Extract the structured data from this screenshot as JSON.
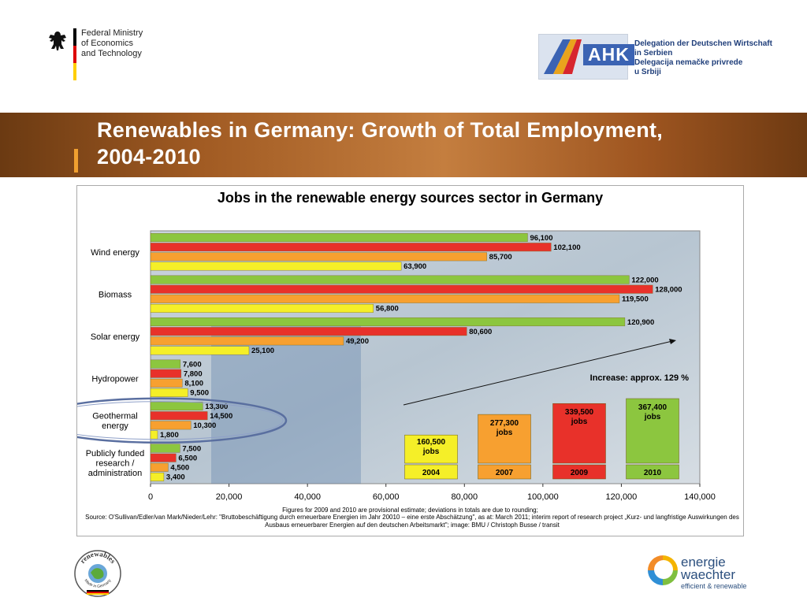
{
  "header": {
    "ministry_lines": [
      "Federal Ministry",
      "of Economics",
      "and Technology"
    ],
    "ahk_word": "AHK",
    "ahk_lines": [
      "Delegation der Deutschen Wirtschaft",
      "in Serbien",
      "Delegacija nemačke privrede",
      "u Srbiji"
    ],
    "flag_colors": [
      "#000000",
      "#dd0000",
      "#ffce00"
    ]
  },
  "slide_title_lines": [
    "Renewables in Germany: Growth of Total Employment,",
    "2004-2010"
  ],
  "chart_data": {
    "type": "bar",
    "orientation": "horizontal",
    "title": "Jobs in the renewable energy sources sector in Germany",
    "categories": [
      "Wind energy",
      "Biomass",
      "Solar energy",
      "Hydropower",
      "Geothermal energy",
      "Publicly funded research / administration"
    ],
    "category_label_lines": [
      [
        "Wind energy"
      ],
      [
        "Biomass"
      ],
      [
        "Solar energy"
      ],
      [
        "Hydropower"
      ],
      [
        "Geothermal",
        "energy"
      ],
      [
        "Publicly funded",
        "research /",
        "administration"
      ]
    ],
    "series": [
      {
        "name": "2010",
        "color": "#8cc63f",
        "values": [
          96100,
          122000,
          120900,
          7600,
          13300,
          7500
        ],
        "labels": [
          "96,100",
          "122,000",
          "120,900",
          "7,600",
          "13,300",
          "7,500"
        ]
      },
      {
        "name": "2009",
        "color": "#e8312a",
        "values": [
          102100,
          128000,
          80600,
          7800,
          14500,
          6500
        ],
        "labels": [
          "102,100",
          "128,000",
          "80,600",
          "7,800",
          "14,500",
          "6,500"
        ]
      },
      {
        "name": "2007",
        "color": "#f7a030",
        "values": [
          85700,
          119500,
          49200,
          8100,
          10300,
          4500
        ],
        "labels": [
          "85,700",
          "119,500",
          "49,200",
          "8,100",
          "10,300",
          "4,500"
        ]
      },
      {
        "name": "2004",
        "color": "#f5ef28",
        "values": [
          63900,
          56800,
          25100,
          9500,
          1800,
          3400
        ],
        "labels": [
          "63,900",
          "56,800",
          "25,100",
          "9,500",
          "1,800",
          "3,400"
        ]
      }
    ],
    "xlim": [
      0,
      140000
    ],
    "xticks": [
      0,
      20000,
      40000,
      60000,
      80000,
      100000,
      120000,
      140000
    ],
    "xtick_labels": [
      "0",
      "20,000",
      "40,000",
      "60,000",
      "80,000",
      "100,000",
      "120,000",
      "140,000"
    ],
    "annotation": "Increase: approx. 129 %",
    "totals": [
      {
        "year": "2004",
        "value": 160500,
        "label": "160,500",
        "unit": "jobs",
        "color": "#f5ef28"
      },
      {
        "year": "2007",
        "value": 277300,
        "label": "277,300",
        "unit": "jobs",
        "color": "#f7a030"
      },
      {
        "year": "2009",
        "value": 339500,
        "label": "339,500",
        "unit": "jobs",
        "color": "#e8312a"
      },
      {
        "year": "2010",
        "value": 367400,
        "label": "367,400",
        "unit": "jobs",
        "color": "#8cc63f"
      }
    ],
    "highlighted_category": "Geothermal energy",
    "legend": "none"
  },
  "footnote": "Figures for 2009 and 2010 are provisional estimate; deviations in totals are due to rounding;",
  "source": "Source: O'Sullivan/Edler/van Mark/Nieder/Lehr: \"Bruttobeschäftigung durch erneuerbare Energien im Jahr 20010 – eine erste Abschätzung\", as at: March 2011; interim report of research project „Kurz- und langfristige Auswirkungen des Ausbaus erneuerbarer Energien auf den deutschen Arbeitsmarkt\"; image: BMU / Christoph Busse / transit",
  "footer": {
    "renewables_word": "renewables",
    "renewables_tag": "Made in Germany",
    "energie_lines": [
      "energie",
      "waechter",
      "efficient & renewable"
    ]
  }
}
